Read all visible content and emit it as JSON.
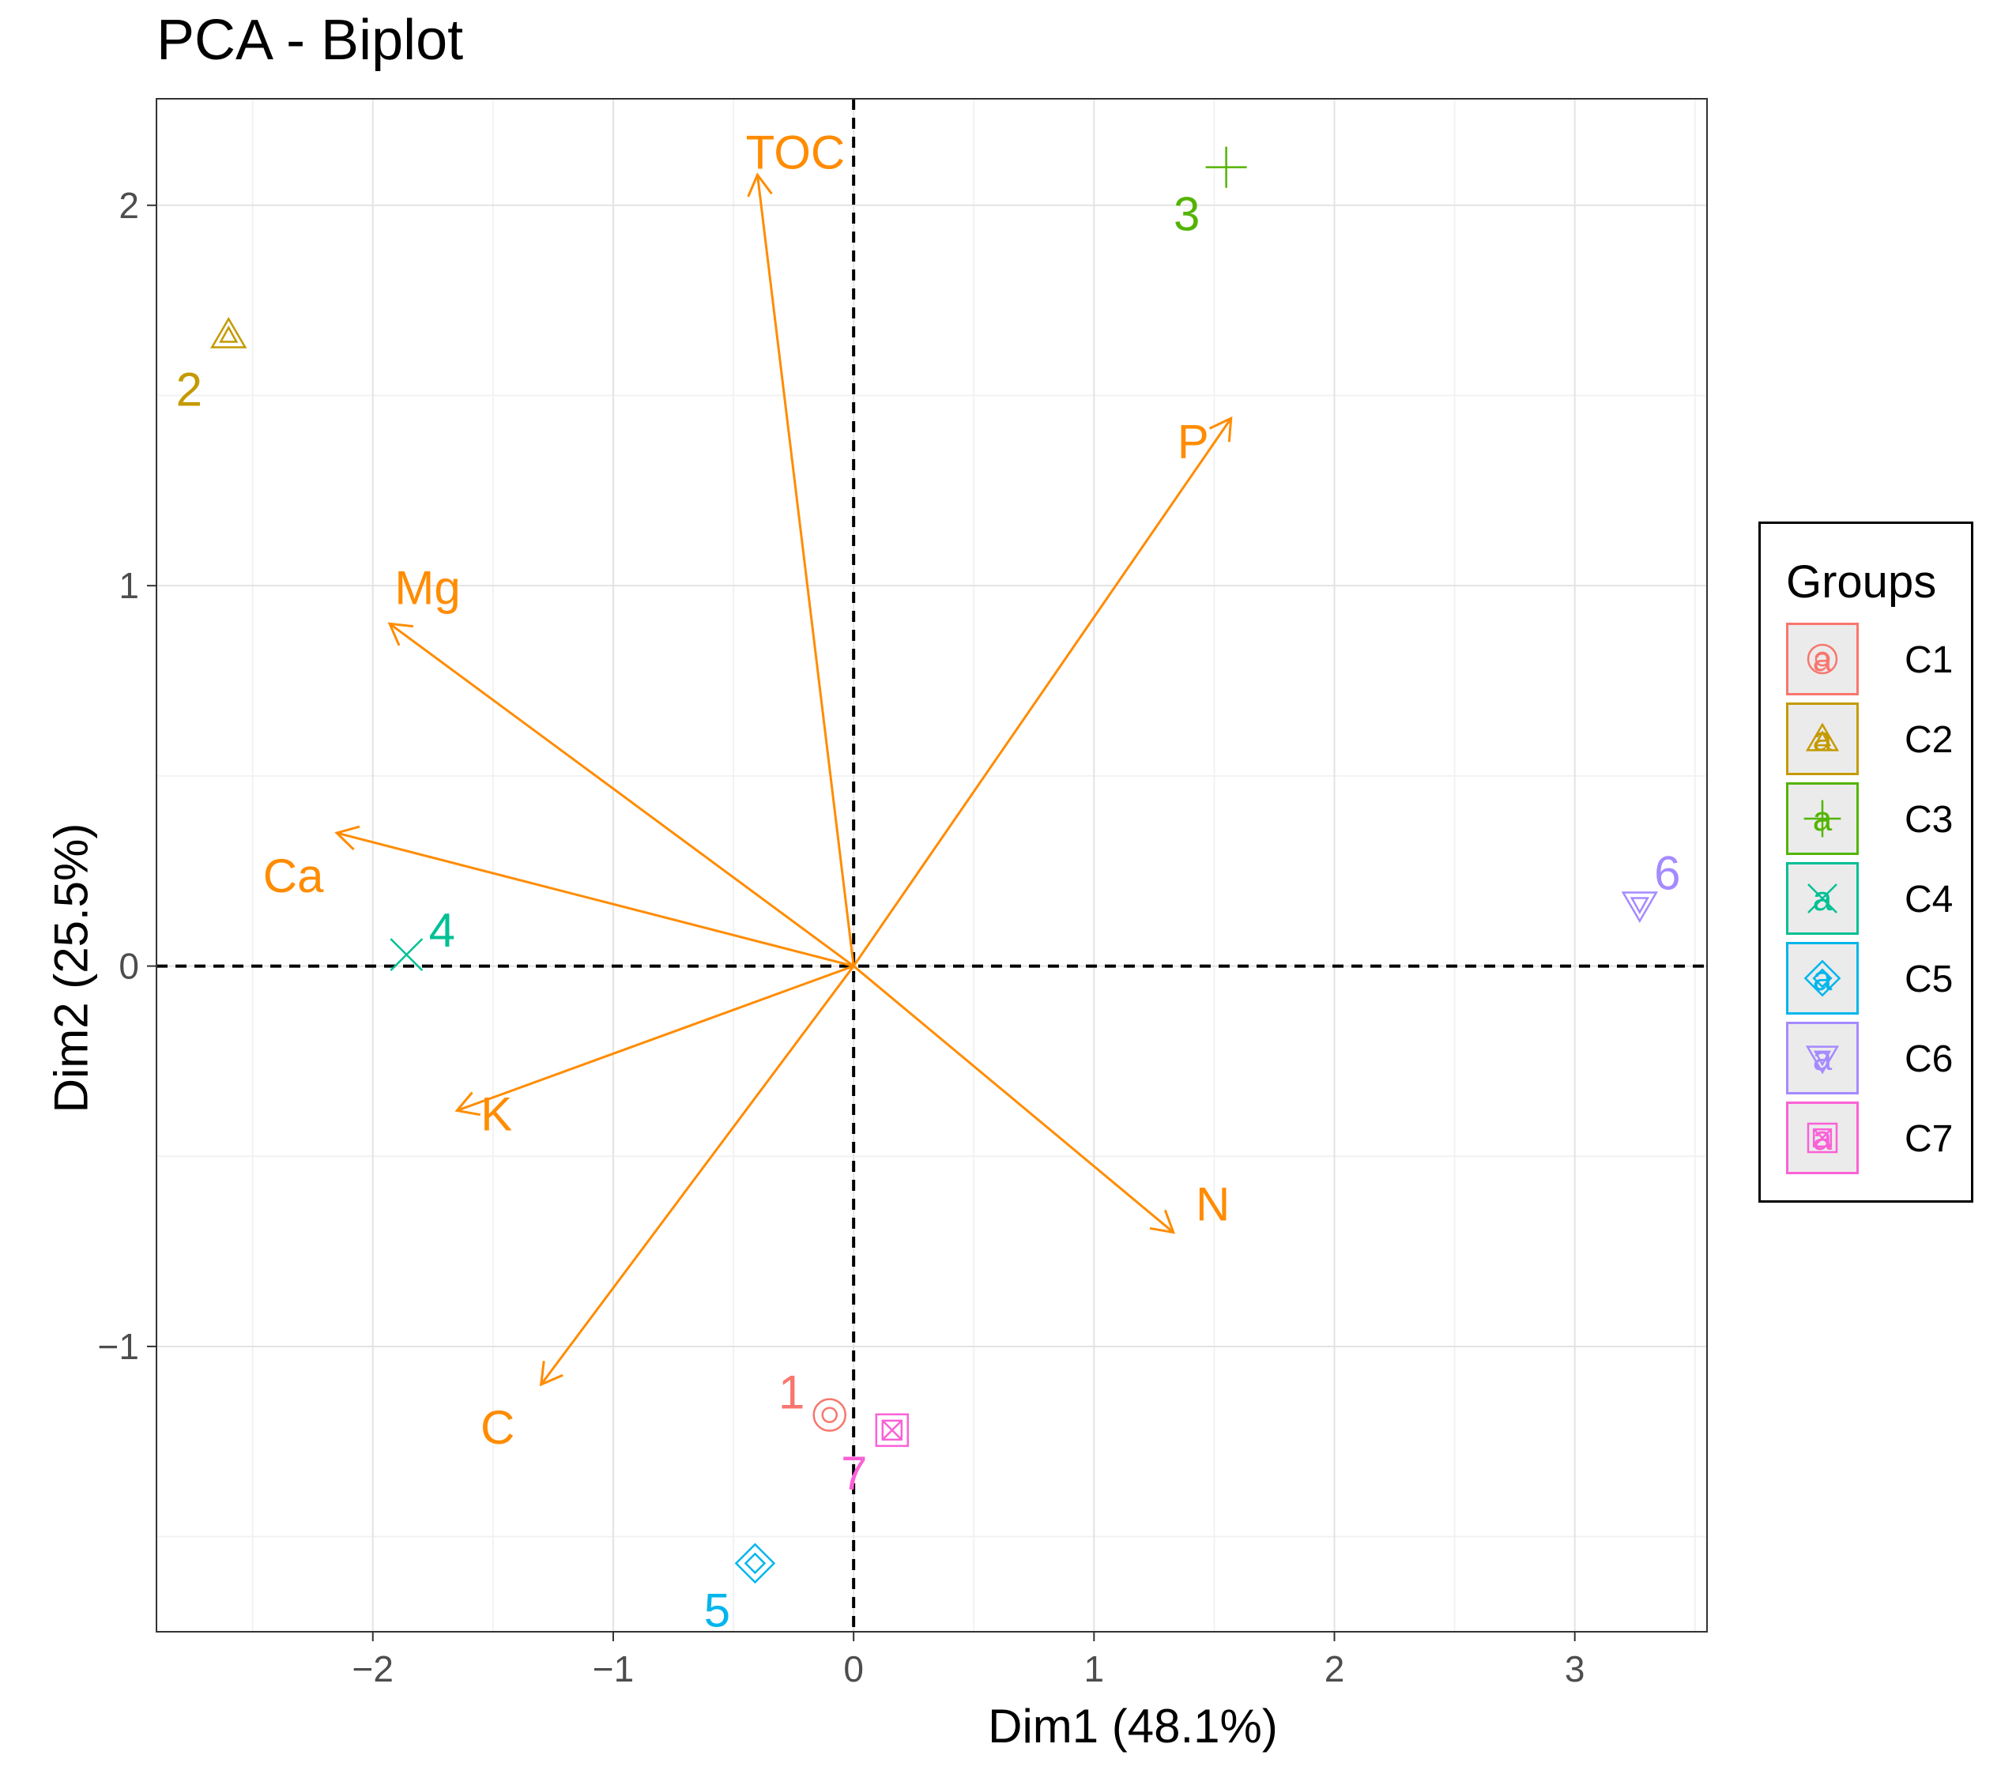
{
  "chart_data": {
    "type": "scatter",
    "title": "PCA - Biplot",
    "xlabel": "Dim1 (48.1%)",
    "ylabel": "Dim2 (25.5%)",
    "xlim": [
      -2.9,
      3.55
    ],
    "ylim": [
      -1.75,
      2.28
    ],
    "x_ticks": [
      -2,
      -1,
      0,
      1,
      2,
      3
    ],
    "x_tick_labels": [
      "−2",
      "−1",
      "0",
      "1",
      "2",
      "3"
    ],
    "y_ticks": [
      -1,
      0,
      1,
      2
    ],
    "y_tick_labels": [
      "−1",
      "0",
      "1",
      "2"
    ],
    "grid": true,
    "reference_lines": {
      "x": 0,
      "y": 0,
      "style": "dashed"
    },
    "legend_title": "Groups",
    "legend_position": "right",
    "points": [
      {
        "label": "1",
        "group": "C1",
        "x": -0.1,
        "y": -1.18,
        "shape": "circle-dot",
        "color": "#F8766D"
      },
      {
        "label": "2",
        "group": "C2",
        "x": -2.6,
        "y": 1.66,
        "shape": "triangle-up",
        "color": "#C49A00"
      },
      {
        "label": "3",
        "group": "C3",
        "x": 1.55,
        "y": 2.1,
        "shape": "plus",
        "color": "#53B400"
      },
      {
        "label": "4",
        "group": "C4",
        "x": -1.86,
        "y": 0.03,
        "shape": "cross",
        "color": "#00C094"
      },
      {
        "label": "5",
        "group": "C5",
        "x": -0.41,
        "y": -1.57,
        "shape": "diamond",
        "color": "#00B6EB"
      },
      {
        "label": "6",
        "group": "C6",
        "x": 3.27,
        "y": 0.16,
        "shape": "triangle-down",
        "color": "#A58AFF"
      },
      {
        "label": "7",
        "group": "C7",
        "x": 0.16,
        "y": -1.22,
        "shape": "square-x",
        "color": "#FB61D7"
      }
    ],
    "variables": [
      {
        "name": "TOC",
        "x": -0.4,
        "y": 2.08
      },
      {
        "name": "P",
        "x": 1.57,
        "y": 1.44
      },
      {
        "name": "Mg",
        "x": -1.93,
        "y": 0.9
      },
      {
        "name": "Ca",
        "x": -2.15,
        "y": 0.35
      },
      {
        "name": "K",
        "x": -1.65,
        "y": -0.38
      },
      {
        "name": "C",
        "x": -1.3,
        "y": -1.1
      },
      {
        "name": "N",
        "x": 1.33,
        "y": -0.7
      }
    ],
    "variable_color": "#FF8C00",
    "legend": [
      {
        "name": "C1",
        "color": "#F8766D",
        "shape": "circle-dot"
      },
      {
        "name": "C2",
        "color": "#C49A00",
        "shape": "triangle-up"
      },
      {
        "name": "C3",
        "color": "#53B400",
        "shape": "plus"
      },
      {
        "name": "C4",
        "color": "#00C094",
        "shape": "cross"
      },
      {
        "name": "C5",
        "color": "#00B6EB",
        "shape": "diamond"
      },
      {
        "name": "C6",
        "color": "#A58AFF",
        "shape": "triangle-down"
      },
      {
        "name": "C7",
        "color": "#FB61D7",
        "shape": "square-x"
      }
    ],
    "legend_glyph": "a"
  }
}
